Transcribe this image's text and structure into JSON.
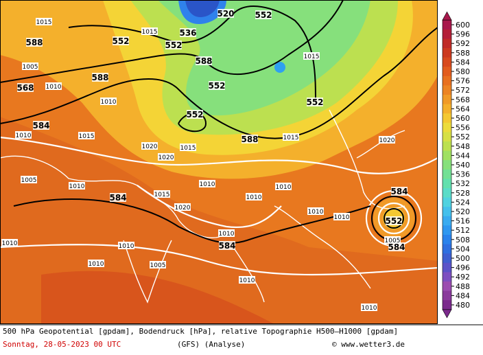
{
  "map": {
    "colorbar": {
      "ticks": [
        600,
        596,
        592,
        588,
        584,
        580,
        576,
        572,
        568,
        564,
        560,
        556,
        552,
        548,
        544,
        540,
        536,
        532,
        528,
        524,
        520,
        516,
        512,
        508,
        504,
        500,
        496,
        492,
        488,
        484,
        480
      ],
      "colors": [
        "#a8184c",
        "#b42038",
        "#c02c28",
        "#cc3a20",
        "#d84a1e",
        "#e25c1e",
        "#e87020",
        "#ec8424",
        "#f09a28",
        "#f4b02c",
        "#f4c832",
        "#ecdc3c",
        "#d6e046",
        "#bce050",
        "#a0e062",
        "#86e07c",
        "#72e096",
        "#62e0ae",
        "#5adcc8",
        "#50d2e0",
        "#45c0ec",
        "#3aabf0",
        "#2f97f0",
        "#2a82ec",
        "#2f6fe0",
        "#3f5fd0",
        "#5b53c8",
        "#7d4fc0",
        "#9b4cb0",
        "#8a3a9c",
        "#7b2a8c"
      ]
    },
    "geopotential_labels": [
      588,
      568,
      584,
      552,
      536,
      552,
      520,
      552,
      588,
      552,
      552,
      588,
      588,
      552,
      584,
      584,
      584,
      552,
      584
    ],
    "pressure_labels": [
      1015,
      1005,
      1010,
      1010,
      1015,
      1020,
      1010,
      1015,
      1020,
      1015,
      1010,
      1005,
      1010,
      1015,
      1020,
      1010,
      1010,
      1010,
      1005,
      1010,
      1015,
      1010,
      1010,
      1020,
      1015,
      1010,
      1010,
      1005,
      1010,
      1010
    ],
    "footer": {
      "description": "500 hPa Geopotential [gpdam], Bodendruck [hPa], relative Topographie H500–H1000 [gpdam]",
      "date": "Sonntag, 28-05-2023  00 UTC",
      "model": "(GFS)  (Analyse)",
      "credit": "© www.wetter3.de"
    }
  }
}
